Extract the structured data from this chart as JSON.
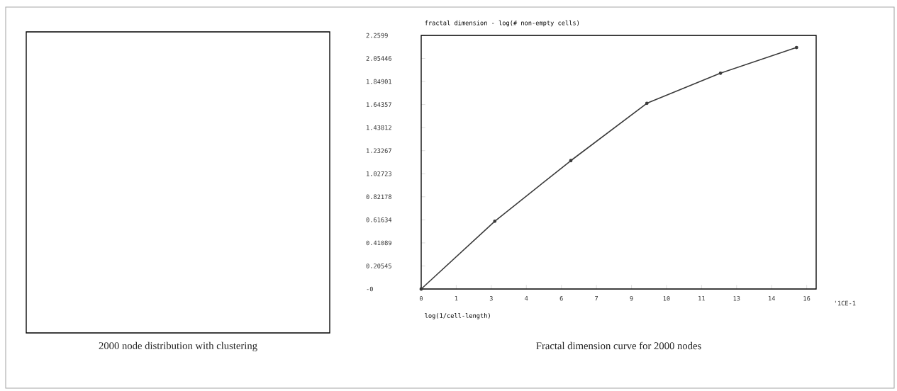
{
  "chart_data": [
    {
      "type": "other",
      "annotations": [
        "2000 node distribution with clustering"
      ]
    },
    {
      "type": "line",
      "xlabel": "log(1/cell-length)",
      "ylabel": "fractal dimension - log(# non-empty cells)",
      "x": [
        0,
        3.0,
        6.1,
        9.2,
        12.2,
        15.3
      ],
      "series": [
        {
          "color": "#3a3a3a",
          "values": [
            0,
            0.604,
            1.144,
            1.655,
            1.923,
            2.152
          ]
        }
      ],
      "marker": "circle",
      "line_style": "solid",
      "grid": false,
      "xlim": [
        0,
        16.1
      ],
      "ylim": [
        0,
        2.2599
      ],
      "xticks": [
        0,
        {
          "value": 1.4286,
          "label": "1"
        },
        {
          "value": 2.8571,
          "label": "3"
        },
        {
          "value": 4.2857,
          "label": "4"
        },
        {
          "value": 5.7143,
          "label": "6"
        },
        {
          "value": 7.1429,
          "label": "7"
        },
        {
          "value": 8.5714,
          "label": "9"
        },
        10,
        {
          "value": 11.4286,
          "label": "11"
        },
        {
          "value": 12.8571,
          "label": "13"
        },
        {
          "value": 14.2857,
          "label": "14"
        },
        {
          "value": 15.7143,
          "label": "16"
        }
      ],
      "yticks": [
        {
          "value": 0,
          "label": "-0"
        },
        0.20545,
        0.41089,
        0.61634,
        0.82178,
        1.02723,
        1.23267,
        1.43812,
        1.64357,
        1.84901,
        2.05446,
        2.2599
      ],
      "annotations": [
        "'1CE-1",
        "Fractal dimension curve for 2000 nodes"
      ]
    }
  ]
}
